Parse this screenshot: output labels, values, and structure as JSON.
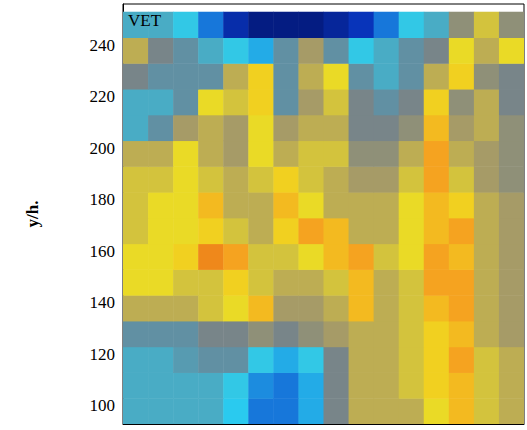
{
  "chart_data": {
    "type": "heatmap",
    "annotations": [
      "VET"
    ],
    "y_label": "y/h.",
    "xlim": [
      0,
      160
    ],
    "ylim": [
      93,
      256
    ],
    "yticks": [
      100,
      120,
      140,
      160,
      180,
      200,
      220,
      240
    ],
    "tick_labels": "y",
    "grid": false,
    "x": [
      5,
      15,
      25,
      35,
      45,
      55,
      65,
      75,
      85,
      95,
      105,
      115,
      125,
      135,
      145,
      155
    ],
    "y": [
      98,
      108,
      118,
      128,
      138,
      148,
      158,
      168,
      178,
      188,
      198,
      208,
      218,
      228,
      238,
      248
    ],
    "value_range": [
      0,
      1
    ],
    "cells": [
      [
        0.35,
        0.35,
        0.35,
        0.35,
        0.28,
        0.2,
        0.2,
        0.25,
        0.45,
        0.6,
        0.6,
        0.6,
        0.7,
        0.8,
        0.65,
        0.6
      ],
      [
        0.35,
        0.35,
        0.35,
        0.35,
        0.3,
        0.22,
        0.2,
        0.25,
        0.45,
        0.6,
        0.6,
        0.65,
        0.75,
        0.8,
        0.65,
        0.6
      ],
      [
        0.35,
        0.35,
        0.38,
        0.4,
        0.4,
        0.3,
        0.25,
        0.3,
        0.45,
        0.6,
        0.6,
        0.65,
        0.75,
        0.85,
        0.65,
        0.6
      ],
      [
        0.4,
        0.4,
        0.4,
        0.45,
        0.45,
        0.5,
        0.45,
        0.5,
        0.55,
        0.6,
        0.6,
        0.65,
        0.75,
        0.8,
        0.6,
        0.55
      ],
      [
        0.6,
        0.6,
        0.6,
        0.65,
        0.7,
        0.8,
        0.55,
        0.55,
        0.6,
        0.8,
        0.6,
        0.65,
        0.8,
        0.85,
        0.6,
        0.55
      ],
      [
        0.7,
        0.7,
        0.65,
        0.65,
        0.75,
        0.65,
        0.6,
        0.6,
        0.65,
        0.8,
        0.6,
        0.65,
        0.85,
        0.85,
        0.6,
        0.55
      ],
      [
        0.7,
        0.7,
        0.75,
        0.9,
        0.85,
        0.65,
        0.65,
        0.7,
        0.8,
        0.85,
        0.65,
        0.7,
        0.85,
        0.8,
        0.6,
        0.55
      ],
      [
        0.65,
        0.7,
        0.7,
        0.75,
        0.65,
        0.6,
        0.75,
        0.85,
        0.8,
        0.6,
        0.6,
        0.7,
        0.8,
        0.85,
        0.6,
        0.55
      ],
      [
        0.65,
        0.7,
        0.7,
        0.8,
        0.6,
        0.6,
        0.8,
        0.7,
        0.6,
        0.6,
        0.6,
        0.7,
        0.8,
        0.75,
        0.6,
        0.55
      ],
      [
        0.65,
        0.65,
        0.7,
        0.65,
        0.6,
        0.65,
        0.75,
        0.65,
        0.6,
        0.55,
        0.55,
        0.65,
        0.85,
        0.65,
        0.55,
        0.5
      ],
      [
        0.6,
        0.6,
        0.7,
        0.6,
        0.55,
        0.7,
        0.6,
        0.65,
        0.65,
        0.5,
        0.5,
        0.6,
        0.85,
        0.6,
        0.55,
        0.5
      ],
      [
        0.35,
        0.4,
        0.55,
        0.6,
        0.55,
        0.7,
        0.55,
        0.6,
        0.6,
        0.45,
        0.45,
        0.5,
        0.8,
        0.55,
        0.6,
        0.5
      ],
      [
        0.35,
        0.35,
        0.4,
        0.7,
        0.65,
        0.75,
        0.4,
        0.55,
        0.65,
        0.45,
        0.4,
        0.45,
        0.75,
        0.5,
        0.6,
        0.45
      ],
      [
        0.45,
        0.4,
        0.4,
        0.4,
        0.6,
        0.75,
        0.4,
        0.6,
        0.7,
        0.4,
        0.35,
        0.4,
        0.6,
        0.75,
        0.5,
        0.45
      ],
      [
        0.6,
        0.45,
        0.4,
        0.35,
        0.3,
        0.25,
        0.4,
        0.55,
        0.4,
        0.3,
        0.35,
        0.4,
        0.45,
        0.7,
        0.6,
        0.7
      ],
      [
        0.35,
        0.35,
        0.3,
        0.2,
        0.1,
        0.05,
        0.05,
        0.05,
        0.08,
        0.12,
        0.2,
        0.3,
        0.35,
        0.5,
        0.65,
        0.5
      ]
    ]
  }
}
